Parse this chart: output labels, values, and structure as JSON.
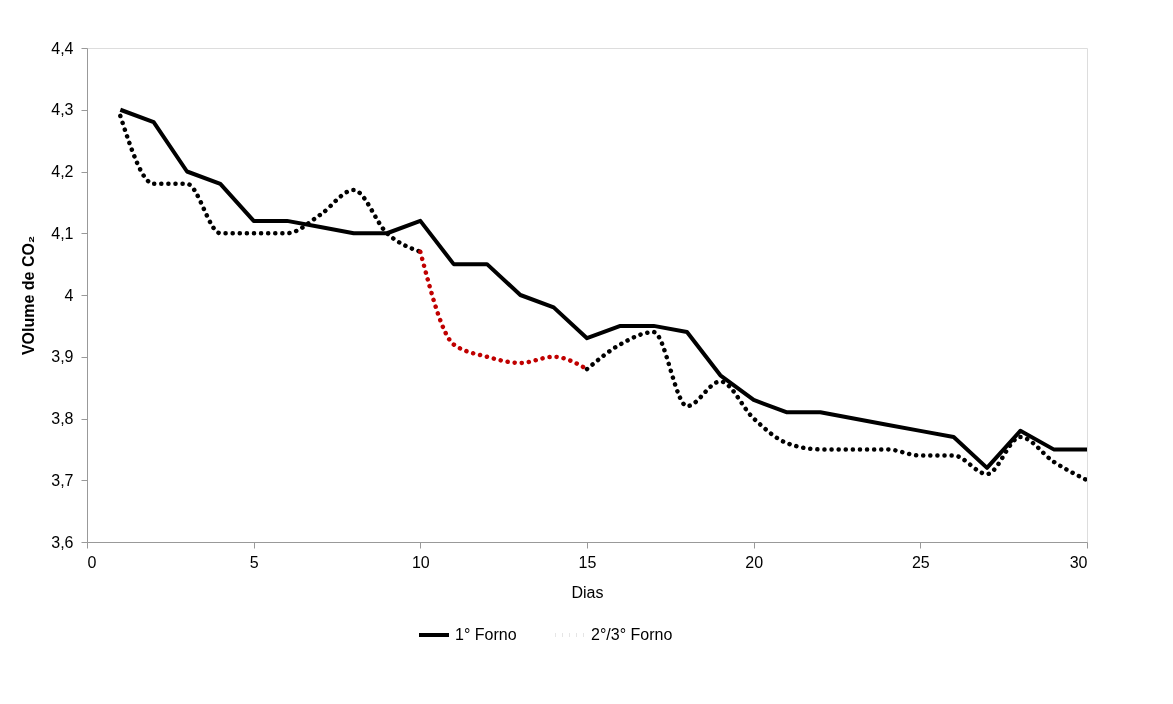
{
  "chart_data": {
    "type": "line",
    "xlabel": "Dias",
    "ylabel": "VOlume de CO₂",
    "x": [
      1,
      2,
      3,
      4,
      5,
      6,
      7,
      8,
      9,
      10,
      11,
      12,
      13,
      14,
      15,
      16,
      17,
      18,
      19,
      20,
      21,
      22,
      23,
      24,
      25,
      26,
      27,
      28,
      29,
      30
    ],
    "series": [
      {
        "name": "1° Forno",
        "color": "#000000",
        "line_style": "solid",
        "values": [
          4.3,
          4.28,
          4.2,
          4.18,
          4.12,
          4.12,
          4.11,
          4.1,
          4.1,
          4.12,
          4.05,
          4.05,
          4.0,
          3.98,
          3.93,
          3.95,
          3.95,
          3.94,
          3.87,
          3.83,
          3.81,
          3.81,
          3.8,
          3.79,
          3.78,
          3.77,
          3.72,
          3.78,
          3.75,
          3.75
        ]
      },
      {
        "name": "2°/3° Forno",
        "color": "#000000",
        "line_style": "dotted",
        "values": [
          4.29,
          4.18,
          4.18,
          4.1,
          4.1,
          4.1,
          4.13,
          4.17,
          4.1,
          4.07,
          null,
          null,
          null,
          null,
          3.88,
          3.92,
          3.94,
          3.82,
          3.86,
          3.8,
          3.76,
          3.75,
          3.75,
          3.75,
          3.74,
          3.74,
          3.71,
          3.77,
          3.73,
          3.7
        ]
      },
      {
        "color": "#c00000",
        "line_style": "dotted",
        "x": [
          10,
          11,
          12,
          13,
          14,
          15
        ],
        "values": [
          4.07,
          3.92,
          3.9,
          3.89,
          3.9,
          3.88
        ]
      }
    ],
    "xlim": [
      0,
      30
    ],
    "xticks": [
      0,
      5,
      10,
      15,
      20,
      25,
      30
    ],
    "ylim": [
      3.6,
      4.4
    ],
    "yticks": [
      {
        "value": 3.6,
        "label": "3,6"
      },
      {
        "value": 3.7,
        "label": "3,7"
      },
      {
        "value": 3.8,
        "label": "3,8"
      },
      {
        "value": 3.9,
        "label": "3,9"
      },
      {
        "value": 4,
        "label": "4"
      },
      {
        "value": 4.1,
        "label": "4,1"
      },
      {
        "value": 4.2,
        "label": "4,2"
      },
      {
        "value": 4.3,
        "label": "4,3"
      },
      {
        "value": 4.4,
        "label": "4,4"
      }
    ],
    "grid": false,
    "legend": "bottom",
    "marker": "none"
  }
}
